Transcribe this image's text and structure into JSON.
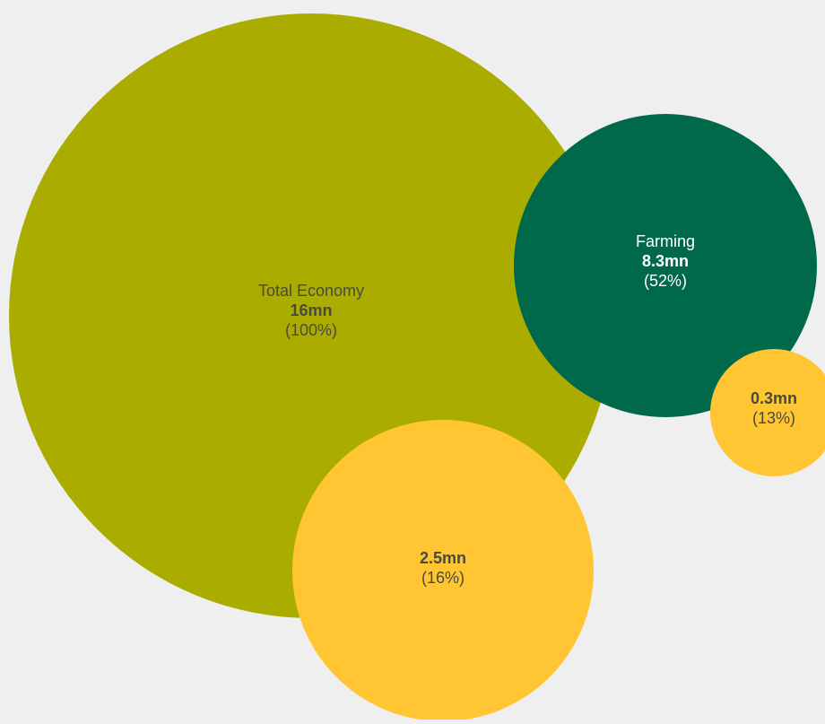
{
  "colors": {
    "background": "#efefef",
    "total": "#aaad00",
    "farming": "#00694a",
    "subset": "#ffc533"
  },
  "chart_data": {
    "type": "bubble",
    "title": "",
    "bubbles": [
      {
        "id": "total",
        "name": "Total Economy",
        "value": 16,
        "value_label": "16mn",
        "share_label": "(100%)",
        "color": "#aaad00"
      },
      {
        "id": "farming",
        "name": "Farming",
        "value": 8.3,
        "value_label": "8.3mn",
        "share_label": "(52%)",
        "color": "#00694a"
      },
      {
        "id": "total_subset",
        "name": "",
        "value": 2.5,
        "value_label": "2.5mn",
        "share_label": "(16%)",
        "color": "#ffc533"
      },
      {
        "id": "farming_subset",
        "name": "",
        "value": 0.3,
        "value_label": "0.3mn",
        "share_label": "(13%)",
        "color": "#ffc533"
      }
    ]
  }
}
